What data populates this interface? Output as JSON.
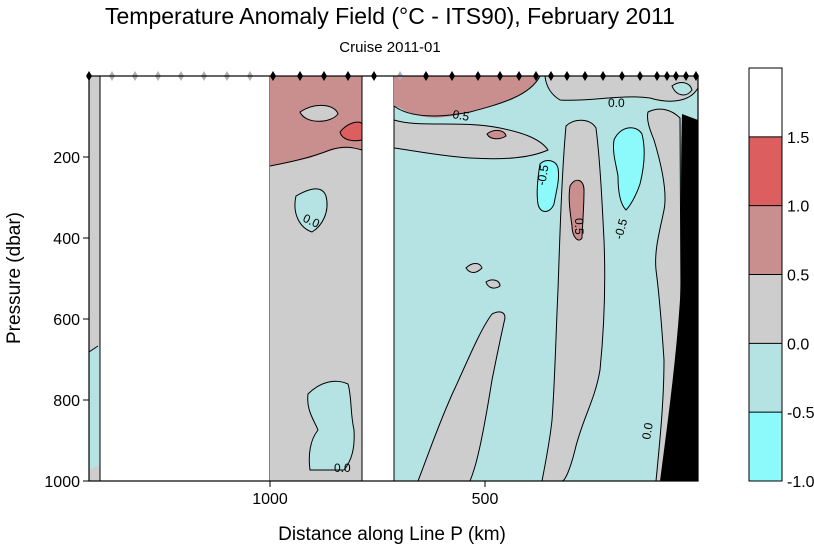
{
  "chart_data": {
    "type": "heatmap",
    "title": "Temperature Anomaly Field  (°C - ITS90),  February 2011",
    "subtitle": "Cruise 2011-01",
    "xlabel": "Distance along Line P  (km)",
    "ylabel": "Pressure  (dbar)",
    "x_axis": {
      "ticks": [
        1000,
        500
      ],
      "reversed": true
    },
    "y_axis": {
      "ticks": [
        200,
        400,
        600,
        800,
        1000
      ],
      "range": [
        0,
        1000
      ],
      "reversed": true
    },
    "colorbar": {
      "ticks": [
        "1.5",
        "1.0",
        "0.5",
        "0.0",
        "-0.5",
        "-1.0"
      ],
      "bins": [
        {
          "range": [
            1.5,
            2.0
          ],
          "color": "#ffffff"
        },
        {
          "range": [
            1.0,
            1.5
          ],
          "color": "#dd5e5e"
        },
        {
          "range": [
            0.5,
            1.0
          ],
          "color": "#c98e8e"
        },
        {
          "range": [
            0.0,
            0.5
          ],
          "color": "#cdcdcd"
        },
        {
          "range": [
            -0.5,
            0.0
          ],
          "color": "#b5e3e3"
        },
        {
          "range": [
            -1.0,
            -0.5
          ],
          "color": "#8cf9fb"
        }
      ]
    },
    "contour_labels": [
      "0.5",
      "0.0",
      "0.0",
      "0.0",
      "-0.5",
      "0.5",
      "-0.5",
      "0.0"
    ]
  },
  "colors": {
    "white": "#ffffff",
    "red": "#dd5e5e",
    "pink": "#c98e8e",
    "gray": "#cdcdcd",
    "lightcyan": "#b5e3e3",
    "cyan": "#8cf9fb",
    "black": "#000000"
  }
}
